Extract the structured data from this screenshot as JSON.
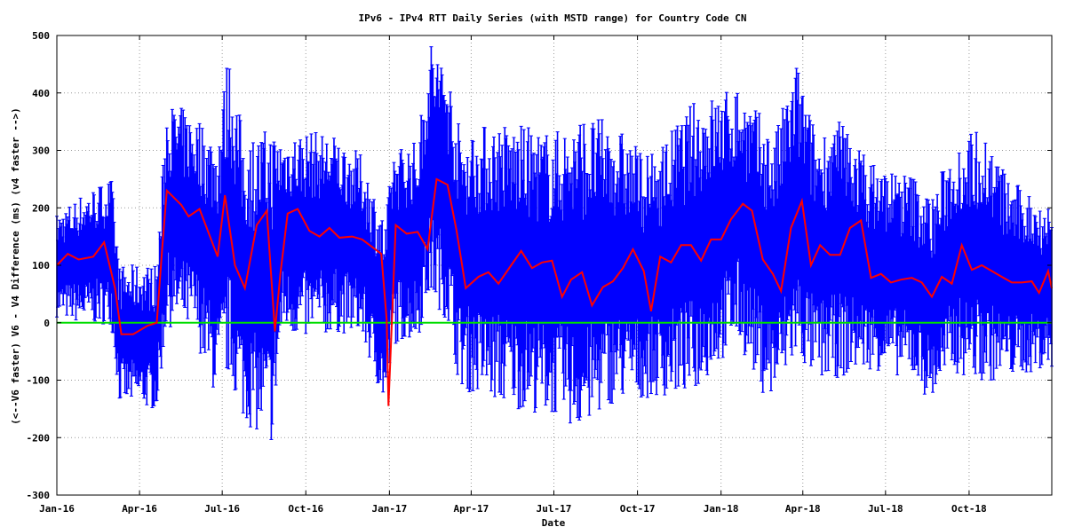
{
  "chart_data": {
    "type": "line",
    "title": "IPv6 - IPv4 RTT Daily Series  (with MSTD range) for Country Code  CN",
    "xlabel": "Date",
    "ylabel": "(<--V6 faster) V6 - V4 Difference (ms) (v4 faster -->)",
    "ylim": [
      -300,
      500
    ],
    "yticks": [
      -300,
      -200,
      -100,
      0,
      100,
      200,
      300,
      400,
      500
    ],
    "xlim": [
      "2016-01-01",
      "2018-12-31"
    ],
    "xticks": [
      {
        "date": "2016-01-01",
        "label": "Jan-16"
      },
      {
        "date": "2016-04-01",
        "label": "Apr-16"
      },
      {
        "date": "2016-07-01",
        "label": "Jul-16"
      },
      {
        "date": "2016-10-01",
        "label": "Oct-16"
      },
      {
        "date": "2017-01-01",
        "label": "Jan-17"
      },
      {
        "date": "2017-04-01",
        "label": "Apr-17"
      },
      {
        "date": "2017-07-01",
        "label": "Jul-17"
      },
      {
        "date": "2017-10-01",
        "label": "Oct-17"
      },
      {
        "date": "2018-01-01",
        "label": "Jan-18"
      },
      {
        "date": "2018-04-01",
        "label": "Apr-18"
      },
      {
        "date": "2018-07-01",
        "label": "Jul-18"
      },
      {
        "date": "2018-10-01",
        "label": "Oct-18"
      }
    ],
    "grid": true,
    "zero_line_color": "#00dd00",
    "band_color": "#0000ff",
    "line_color": "#ff0000",
    "series": [
      {
        "kind": "mean",
        "points": [
          [
            "2016-01-01",
            100
          ],
          [
            "2016-01-13",
            120
          ],
          [
            "2016-01-25",
            110
          ],
          [
            "2016-02-10",
            115
          ],
          [
            "2016-02-22",
            140
          ],
          [
            "2016-03-05",
            60
          ],
          [
            "2016-03-12",
            -20
          ],
          [
            "2016-03-25",
            -20
          ],
          [
            "2016-04-10",
            -5
          ],
          [
            "2016-04-20",
            0
          ],
          [
            "2016-04-26",
            130
          ],
          [
            "2016-05-01",
            230
          ],
          [
            "2016-05-17",
            205
          ],
          [
            "2016-05-25",
            185
          ],
          [
            "2016-06-06",
            198
          ],
          [
            "2016-06-26",
            115
          ],
          [
            "2016-07-04",
            222
          ],
          [
            "2016-07-15",
            100
          ],
          [
            "2016-07-26",
            60
          ],
          [
            "2016-08-08",
            170
          ],
          [
            "2016-08-19",
            195
          ],
          [
            "2016-08-28",
            -15
          ],
          [
            "2016-09-03",
            85
          ],
          [
            "2016-09-11",
            190
          ],
          [
            "2016-09-22",
            198
          ],
          [
            "2016-10-05",
            160
          ],
          [
            "2016-10-16",
            150
          ],
          [
            "2016-10-27",
            165
          ],
          [
            "2016-11-07",
            148
          ],
          [
            "2016-11-21",
            150
          ],
          [
            "2016-12-02",
            145
          ],
          [
            "2016-12-23",
            120
          ],
          [
            "2016-12-29",
            5
          ],
          [
            "2016-12-31",
            -145
          ],
          [
            "2017-01-08",
            170
          ],
          [
            "2017-01-20",
            155
          ],
          [
            "2017-02-01",
            158
          ],
          [
            "2017-02-12",
            128
          ],
          [
            "2017-02-22",
            250
          ],
          [
            "2017-03-06",
            240
          ],
          [
            "2017-03-16",
            160
          ],
          [
            "2017-03-26",
            60
          ],
          [
            "2017-04-09",
            80
          ],
          [
            "2017-04-20",
            88
          ],
          [
            "2017-05-01",
            68
          ],
          [
            "2017-05-15",
            100
          ],
          [
            "2017-05-26",
            125
          ],
          [
            "2017-06-07",
            95
          ],
          [
            "2017-06-18",
            105
          ],
          [
            "2017-06-29",
            108
          ],
          [
            "2017-07-10",
            45
          ],
          [
            "2017-07-20",
            75
          ],
          [
            "2017-08-01",
            88
          ],
          [
            "2017-08-12",
            30
          ],
          [
            "2017-08-24",
            62
          ],
          [
            "2017-09-04",
            72
          ],
          [
            "2017-09-15",
            95
          ],
          [
            "2017-09-26",
            128
          ],
          [
            "2017-10-08",
            90
          ],
          [
            "2017-10-16",
            20
          ],
          [
            "2017-10-26",
            115
          ],
          [
            "2017-11-07",
            105
          ],
          [
            "2017-11-18",
            135
          ],
          [
            "2017-11-29",
            135
          ],
          [
            "2017-12-10",
            108
          ],
          [
            "2017-12-21",
            145
          ],
          [
            "2018-01-01",
            145
          ],
          [
            "2018-01-12",
            180
          ],
          [
            "2018-01-25",
            207
          ],
          [
            "2018-02-04",
            195
          ],
          [
            "2018-02-16",
            110
          ],
          [
            "2018-02-27",
            85
          ],
          [
            "2018-03-08",
            55
          ],
          [
            "2018-03-19",
            165
          ],
          [
            "2018-03-31",
            212
          ],
          [
            "2018-04-10",
            100
          ],
          [
            "2018-04-20",
            135
          ],
          [
            "2018-05-01",
            118
          ],
          [
            "2018-05-12",
            118
          ],
          [
            "2018-05-23",
            165
          ],
          [
            "2018-06-04",
            178
          ],
          [
            "2018-06-15",
            78
          ],
          [
            "2018-06-26",
            85
          ],
          [
            "2018-07-07",
            70
          ],
          [
            "2018-07-18",
            75
          ],
          [
            "2018-07-30",
            78
          ],
          [
            "2018-08-10",
            70
          ],
          [
            "2018-08-21",
            45
          ],
          [
            "2018-09-01",
            80
          ],
          [
            "2018-09-12",
            68
          ],
          [
            "2018-09-23",
            135
          ],
          [
            "2018-10-04",
            92
          ],
          [
            "2018-10-15",
            100
          ],
          [
            "2018-10-26",
            90
          ],
          [
            "2018-11-06",
            80
          ],
          [
            "2018-11-17",
            70
          ],
          [
            "2018-11-28",
            70
          ],
          [
            "2018-12-09",
            72
          ],
          [
            "2018-12-17",
            52
          ],
          [
            "2018-12-27",
            90
          ],
          [
            "2018-12-31",
            60
          ]
        ]
      },
      {
        "kind": "mstd_range",
        "envelope": [
          [
            "2016-01-01",
            40,
            160
          ],
          [
            "2016-02-01",
            35,
            190
          ],
          [
            "2016-03-01",
            40,
            210
          ],
          [
            "2016-03-10",
            -100,
            60
          ],
          [
            "2016-04-20",
            -110,
            60
          ],
          [
            "2016-05-01",
            60,
            320
          ],
          [
            "2016-06-01",
            40,
            300
          ],
          [
            "2016-06-25",
            -60,
            250
          ],
          [
            "2016-07-08",
            0,
            380
          ],
          [
            "2016-07-25",
            -90,
            240
          ],
          [
            "2016-08-25",
            -120,
            250
          ],
          [
            "2016-09-05",
            40,
            270
          ],
          [
            "2016-10-01",
            30,
            275
          ],
          [
            "2016-11-01",
            40,
            270
          ],
          [
            "2016-12-01",
            30,
            240
          ],
          [
            "2016-12-28",
            -100,
            120
          ],
          [
            "2017-01-05",
            20,
            250
          ],
          [
            "2017-02-01",
            30,
            260
          ],
          [
            "2017-02-15",
            120,
            420
          ],
          [
            "2017-03-05",
            80,
            380
          ],
          [
            "2017-03-20",
            -40,
            260
          ],
          [
            "2017-05-01",
            -60,
            270
          ],
          [
            "2017-07-01",
            -80,
            250
          ],
          [
            "2017-08-01",
            -100,
            270
          ],
          [
            "2017-09-01",
            -60,
            270
          ],
          [
            "2017-10-15",
            -60,
            220
          ],
          [
            "2017-12-01",
            -40,
            300
          ],
          [
            "2018-01-20",
            40,
            340
          ],
          [
            "2018-02-15",
            -40,
            280
          ],
          [
            "2018-03-01",
            -60,
            250
          ],
          [
            "2018-03-25",
            20,
            370
          ],
          [
            "2018-04-15",
            -30,
            260
          ],
          [
            "2018-05-15",
            -20,
            280
          ],
          [
            "2018-06-15",
            -20,
            220
          ],
          [
            "2018-08-01",
            -40,
            200
          ],
          [
            "2018-08-20",
            -80,
            160
          ],
          [
            "2018-09-15",
            -20,
            250
          ],
          [
            "2018-10-15",
            -30,
            270
          ],
          [
            "2018-11-15",
            -40,
            190
          ],
          [
            "2018-12-31",
            -30,
            160
          ]
        ]
      }
    ]
  }
}
